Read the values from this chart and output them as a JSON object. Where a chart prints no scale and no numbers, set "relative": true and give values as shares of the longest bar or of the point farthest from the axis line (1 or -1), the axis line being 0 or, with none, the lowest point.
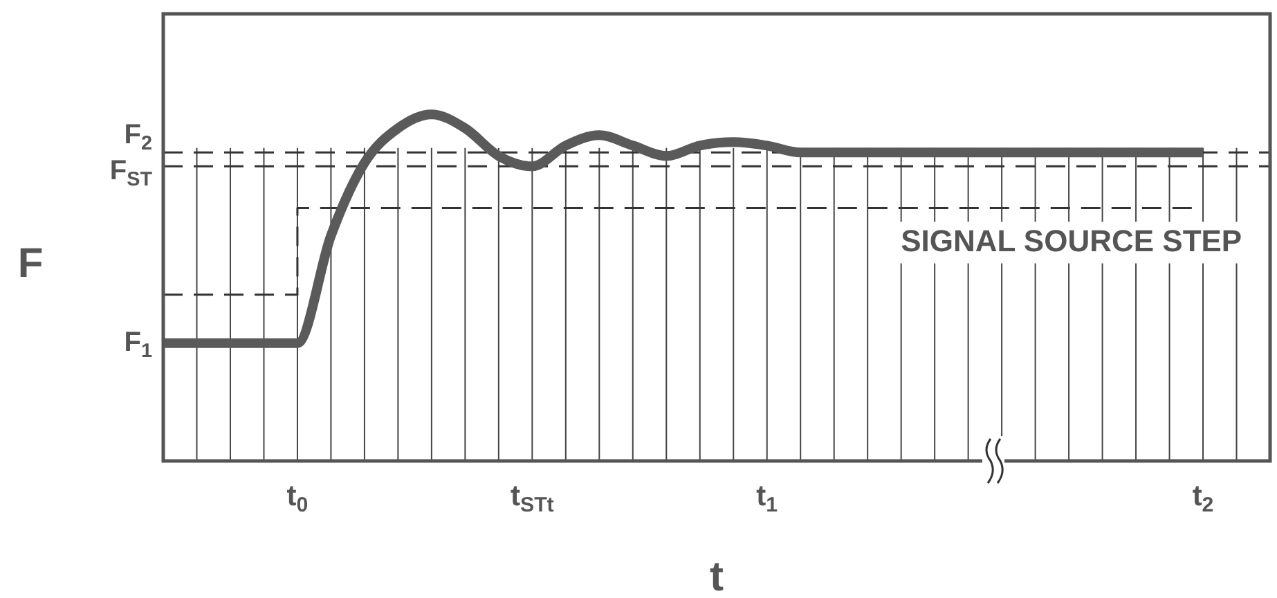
{
  "chart_data": {
    "type": "line",
    "relative": true,
    "xlabel": "t",
    "ylabel": "F",
    "grid": "x",
    "line_style": "solid",
    "marker": "none",
    "categories": [
      null,
      null,
      null,
      null,
      "t$_{0}$",
      null,
      null,
      null,
      null,
      null,
      null,
      "t$_{STt}$",
      null,
      null,
      null,
      null,
      null,
      null,
      "t$_{1}$",
      null,
      null,
      null,
      null,
      null,
      null,
      null,
      null,
      null,
      null,
      null,
      null,
      "t$_{2}$",
      null,
      null
    ],
    "series": [
      {
        "color": "#5a5a5a",
        "values": [
          0.34,
          0.34,
          0.34,
          0.34,
          0.34,
          0.65,
          0.86,
          0.96,
          1.0,
          0.96,
          0.88,
          0.85,
          0.91,
          0.94,
          0.91,
          0.88,
          0.91,
          0.92,
          0.91,
          0.89,
          0.89,
          0.89,
          0.89,
          0.89,
          0.89,
          0.89,
          0.89,
          0.89,
          0.89,
          0.89,
          0.89,
          0.89,
          null,
          null
        ]
      },
      {
        "type": "step",
        "color": "#333333",
        "line_style": "dashed",
        "values": [
          0.48,
          0.48,
          0.48,
          0.48,
          0.73,
          0.73,
          0.73,
          0.73,
          0.73,
          0.73,
          0.73,
          0.73,
          0.73,
          0.73,
          0.73,
          0.73,
          0.73,
          0.73,
          0.73,
          0.73,
          0.73,
          0.73,
          0.73,
          0.73,
          0.73,
          0.73,
          0.73,
          0.73,
          0.73,
          0.73,
          0.73,
          0.73,
          null,
          null
        ]
      }
    ],
    "ref_lines": [
      {
        "axis": "y",
        "value": 0.89,
        "label": "F$_{2}$",
        "line_style": "dashed",
        "color": "#333333"
      },
      {
        "axis": "y",
        "value": 0.85,
        "label": "F$_{ST}$",
        "line_style": "dashed",
        "color": "#333333"
      }
    ],
    "annotations": [
      "SIGNAL SOURCE STEP",
      "F$_{1}$"
    ]
  }
}
